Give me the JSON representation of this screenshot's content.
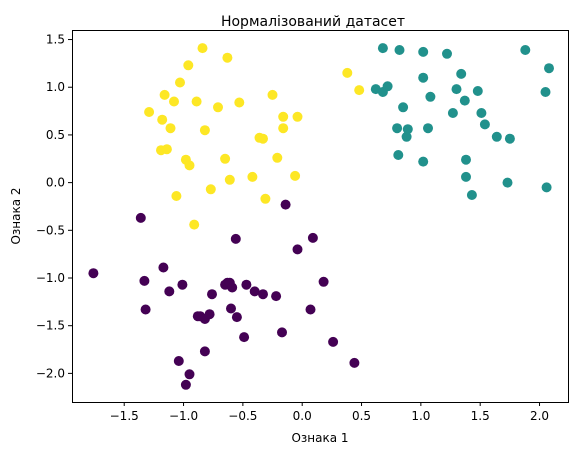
{
  "chart_data": {
    "type": "scatter",
    "title": "Нормалізований датасет",
    "xlabel": "Ознака 1",
    "ylabel": "Ознака 2",
    "xlim": [
      -1.94,
      2.24
    ],
    "ylim": [
      -2.3,
      1.6
    ],
    "xticks": [
      -1.5,
      -1.0,
      -0.5,
      0.0,
      0.5,
      1.0,
      1.5,
      2.0
    ],
    "xtick_labels": [
      "−1.5",
      "−1.0",
      "−0.5",
      "0.0",
      "0.5",
      "1.0",
      "1.5",
      "2.0"
    ],
    "yticks": [
      -2.0,
      -1.5,
      -1.0,
      -0.5,
      0.0,
      0.5,
      1.0,
      1.5
    ],
    "ytick_labels": [
      "−2.0",
      "−1.5",
      "−1.0",
      "−0.5",
      "0.0",
      "0.5",
      "1.0",
      "1.5"
    ],
    "grid": false,
    "series": [
      {
        "color": "#440154",
        "points": [
          [
            -1.76,
            -0.95
          ],
          [
            -1.36,
            -0.37
          ],
          [
            -1.33,
            -1.03
          ],
          [
            -1.32,
            -1.33
          ],
          [
            -1.17,
            -0.89
          ],
          [
            -1.12,
            -1.14
          ],
          [
            -1.04,
            -1.87
          ],
          [
            -1.01,
            -1.07
          ],
          [
            -0.98,
            -2.12
          ],
          [
            -0.95,
            -2.01
          ],
          [
            -0.88,
            -1.4
          ],
          [
            -0.86,
            -1.4
          ],
          [
            -0.82,
            -1.43
          ],
          [
            -0.82,
            -1.77
          ],
          [
            -0.78,
            -1.38
          ],
          [
            -0.76,
            -1.17
          ],
          [
            -0.65,
            -1.07
          ],
          [
            -0.63,
            -1.05
          ],
          [
            -0.61,
            -1.05
          ],
          [
            -0.6,
            -1.32
          ],
          [
            -0.59,
            -1.1
          ],
          [
            -0.56,
            -0.59
          ],
          [
            -0.55,
            -1.41
          ],
          [
            -0.49,
            -1.62
          ],
          [
            -0.47,
            -1.07
          ],
          [
            -0.4,
            -1.14
          ],
          [
            -0.33,
            -1.17
          ],
          [
            -0.22,
            -1.19
          ],
          [
            -0.17,
            -1.57
          ],
          [
            -0.14,
            -0.23
          ],
          [
            -0.04,
            -0.7
          ],
          [
            0.07,
            -1.33
          ],
          [
            0.09,
            -0.58
          ],
          [
            0.18,
            -1.04
          ],
          [
            0.26,
            -1.67
          ],
          [
            0.44,
            -1.89
          ]
        ]
      },
      {
        "color": "#21918c",
        "points": [
          [
            0.62,
            0.98
          ],
          [
            0.68,
            1.41
          ],
          [
            0.68,
            0.95
          ],
          [
            0.72,
            1.01
          ],
          [
            0.8,
            0.57
          ],
          [
            0.81,
            0.29
          ],
          [
            0.82,
            1.39
          ],
          [
            0.85,
            0.79
          ],
          [
            0.88,
            0.48
          ],
          [
            0.89,
            0.56
          ],
          [
            1.02,
            1.37
          ],
          [
            1.02,
            1.1
          ],
          [
            1.02,
            0.22
          ],
          [
            1.06,
            0.57
          ],
          [
            1.08,
            0.9
          ],
          [
            1.22,
            1.35
          ],
          [
            1.27,
            0.73
          ],
          [
            1.3,
            0.98
          ],
          [
            1.34,
            1.14
          ],
          [
            1.37,
            0.86
          ],
          [
            1.38,
            0.24
          ],
          [
            1.38,
            0.06
          ],
          [
            1.43,
            -0.13
          ],
          [
            1.48,
            0.96
          ],
          [
            1.51,
            0.73
          ],
          [
            1.54,
            0.61
          ],
          [
            1.64,
            0.48
          ],
          [
            1.73,
            0.0
          ],
          [
            1.75,
            0.46
          ],
          [
            1.88,
            1.39
          ],
          [
            2.05,
            0.95
          ],
          [
            2.06,
            -0.05
          ],
          [
            2.08,
            1.2
          ]
        ]
      },
      {
        "color": "#fde725",
        "points": [
          [
            -1.29,
            0.74
          ],
          [
            -1.19,
            0.34
          ],
          [
            -1.18,
            0.66
          ],
          [
            -1.16,
            0.92
          ],
          [
            -1.14,
            0.35
          ],
          [
            -1.11,
            0.57
          ],
          [
            -1.08,
            0.85
          ],
          [
            -1.06,
            -0.14
          ],
          [
            -1.03,
            1.05
          ],
          [
            -0.98,
            0.24
          ],
          [
            -0.96,
            1.23
          ],
          [
            -0.95,
            0.18
          ],
          [
            -0.91,
            -0.44
          ],
          [
            -0.89,
            0.85
          ],
          [
            -0.84,
            1.41
          ],
          [
            -0.82,
            0.55
          ],
          [
            -0.77,
            -0.07
          ],
          [
            -0.71,
            0.79
          ],
          [
            -0.65,
            0.25
          ],
          [
            -0.63,
            1.31
          ],
          [
            -0.61,
            0.03
          ],
          [
            -0.53,
            0.84
          ],
          [
            -0.42,
            0.06
          ],
          [
            -0.36,
            0.47
          ],
          [
            -0.33,
            0.46
          ],
          [
            -0.31,
            -0.17
          ],
          [
            -0.25,
            0.92
          ],
          [
            -0.21,
            0.26
          ],
          [
            -0.16,
            0.69
          ],
          [
            -0.16,
            0.57
          ],
          [
            -0.06,
            0.07
          ],
          [
            -0.04,
            0.69
          ],
          [
            0.38,
            1.15
          ],
          [
            0.48,
            0.97
          ]
        ]
      }
    ]
  }
}
